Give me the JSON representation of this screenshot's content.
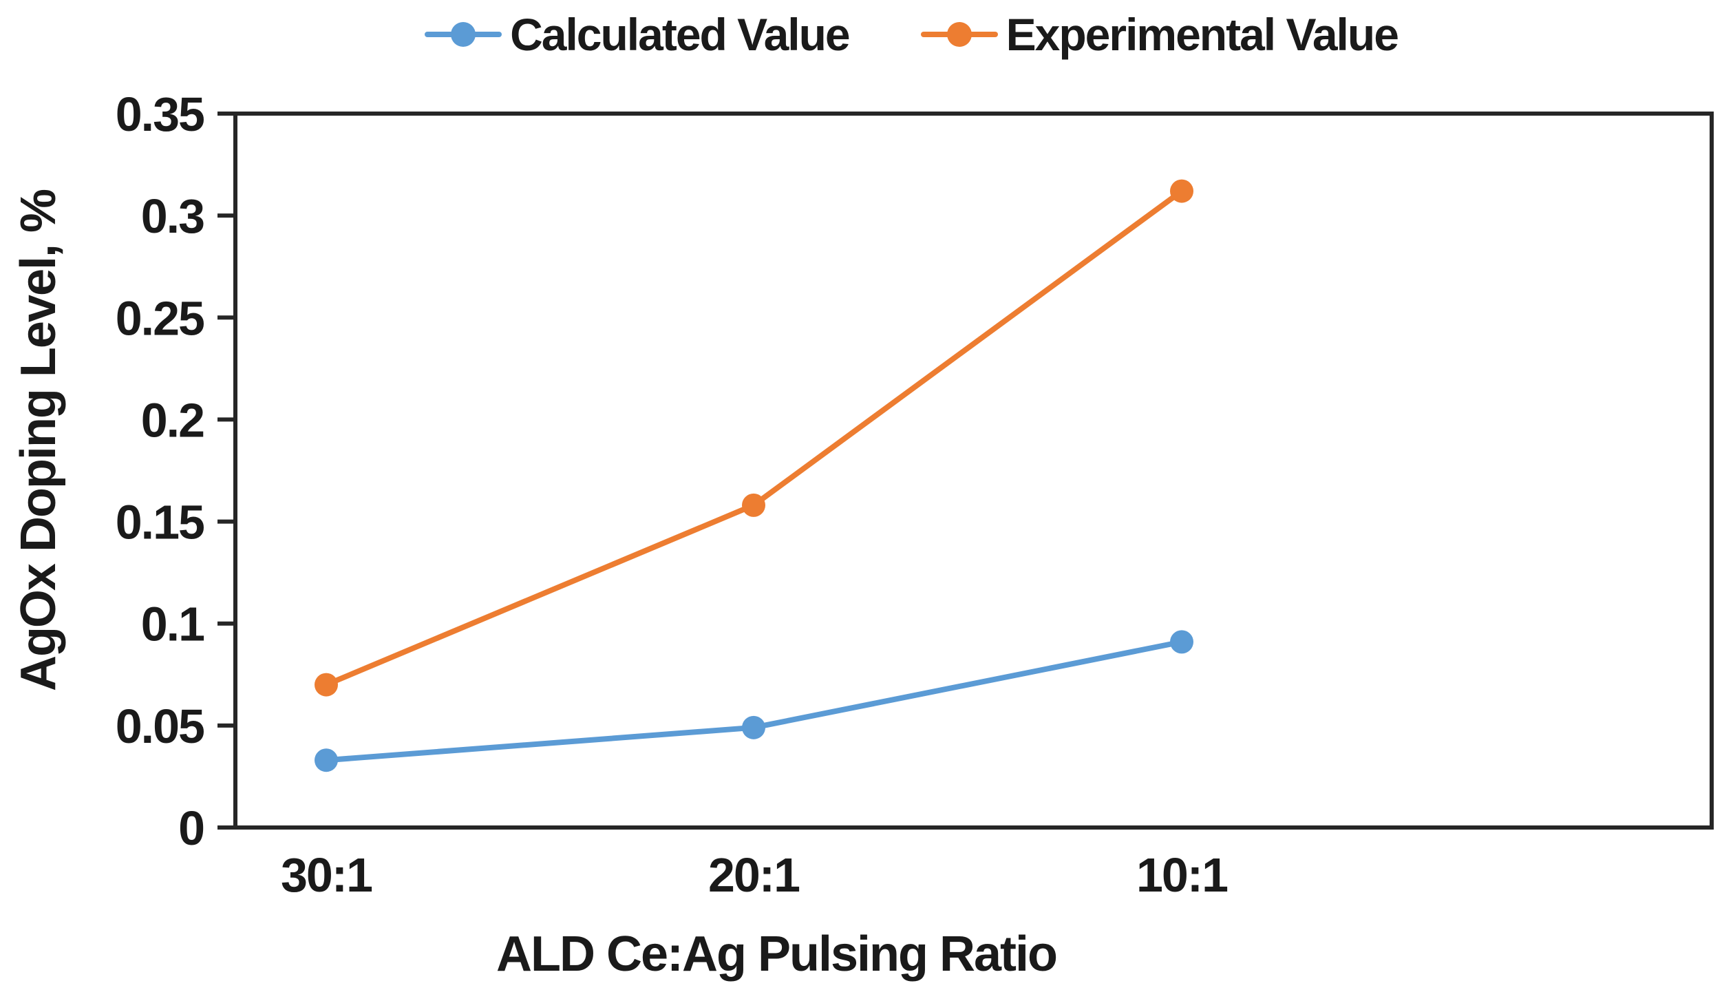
{
  "chart_data": {
    "type": "line",
    "categories": [
      "30:1",
      "20:1",
      "10:1"
    ],
    "series": [
      {
        "name": "Calculated Value",
        "color": "#5B9BD5",
        "values": [
          0.033,
          0.049,
          0.091
        ]
      },
      {
        "name": "Experimental Value",
        "color": "#ED7D31",
        "values": [
          0.07,
          0.158,
          0.312
        ]
      }
    ],
    "xlabel": "ALD Ce:Ag Pulsing Ratio",
    "ylabel": "AgOx Doping Level, %",
    "ylim": [
      0,
      0.35
    ],
    "ytick_step": 0.05,
    "ytick_labels": [
      "0",
      "0.05",
      "0.1",
      "0.15",
      "0.2",
      "0.25",
      "0.3",
      "0.35"
    ],
    "legend": {
      "position": "top",
      "entries": [
        "Calculated Value",
        "Experimental Value"
      ]
    },
    "grid": false,
    "axis_color": "#262626",
    "text_color": "#1a1a1a"
  }
}
